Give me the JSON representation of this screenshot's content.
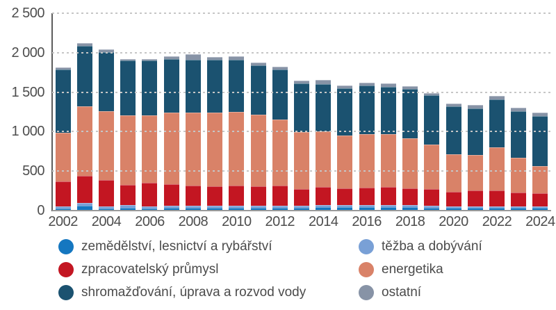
{
  "chart_data": {
    "type": "bar",
    "stacked": true,
    "title": "",
    "xlabel": "",
    "ylabel": "",
    "ylim": [
      0,
      2500
    ],
    "grid": "horizontal-dashed",
    "legend_position": "bottom-two-columns",
    "x": [
      "2002",
      "2003",
      "2004",
      "2005",
      "2006",
      "2007",
      "2008",
      "2009",
      "2010",
      "2011",
      "2012",
      "2013",
      "2014",
      "2015",
      "2016",
      "2017",
      "2018",
      "2019",
      "2020",
      "2021",
      "2022",
      "2023",
      "2024"
    ],
    "xtick_shown": [
      "2002",
      "2004",
      "2006",
      "2008",
      "2010",
      "2012",
      "2014",
      "2016",
      "2018",
      "2020",
      "2022",
      "2024"
    ],
    "ytick_values": [
      0,
      500,
      1000,
      1500,
      2000,
      2500
    ],
    "ytick_labels": [
      "0",
      "500",
      "1 000",
      "1 500",
      "2 000",
      "2 500"
    ],
    "series": [
      {
        "key": "zemedelstvi",
        "name": "zemědělství, lesnictví a rybářství",
        "color": "#1577c0",
        "values": [
          30,
          65,
          30,
          40,
          30,
          40,
          40,
          40,
          40,
          40,
          40,
          40,
          45,
          45,
          45,
          45,
          45,
          40,
          35,
          35,
          40,
          35,
          35
        ]
      },
      {
        "key": "tezba",
        "name": "těžba a dobývání",
        "color": "#79a0d6",
        "values": [
          25,
          35,
          25,
          30,
          26,
          25,
          25,
          25,
          25,
          25,
          25,
          25,
          25,
          25,
          25,
          25,
          25,
          20,
          15,
          15,
          15,
          15,
          15
        ]
      },
      {
        "key": "zpracovatelsky",
        "name": "zpracovatelský průmysl",
        "color": "#c31622",
        "values": [
          315,
          338,
          335,
          256,
          293,
          269,
          249,
          240,
          249,
          240,
          255,
          211,
          227,
          215,
          220,
          227,
          215,
          216,
          190,
          203,
          198,
          181,
          167
        ]
      },
      {
        "key": "energetika",
        "name": "energetika",
        "color": "#d98268",
        "values": [
          615,
          882,
          865,
          882,
          853,
          912,
          924,
          941,
          941,
          912,
          838,
          724,
          706,
          668,
          683,
          676,
          630,
          559,
          477,
          450,
          552,
          442,
          348
        ]
      },
      {
        "key": "shromazdovani",
        "name": "shromažďování, úprava a rozvod vody",
        "color": "#1b5270",
        "values": [
          805,
          768,
          751,
          692,
          696,
          678,
          670,
          662,
          659,
          626,
          626,
          614,
          602,
          593,
          612,
          597,
          626,
          623,
          600,
          593,
          600,
          585,
          634
        ]
      },
      {
        "key": "ostatni",
        "name": "ostatní",
        "color": "#8793a6",
        "values": [
          25,
          30,
          34,
          24,
          20,
          29,
          74,
          35,
          38,
          36,
          42,
          29,
          47,
          39,
          38,
          44,
          35,
          29,
          38,
          42,
          44,
          44,
          39
        ]
      }
    ],
    "legend_columns": [
      [
        0,
        2,
        4
      ],
      [
        1,
        3,
        5
      ]
    ]
  },
  "colors": {
    "background": "#ffffff",
    "y_axis_line": "#5c5c5c",
    "x_axis_line": "#9a9a9a",
    "gridline": "#c6c6c6",
    "tick_text": "#4d4d4d",
    "legend_text": "#4b4b4b"
  }
}
